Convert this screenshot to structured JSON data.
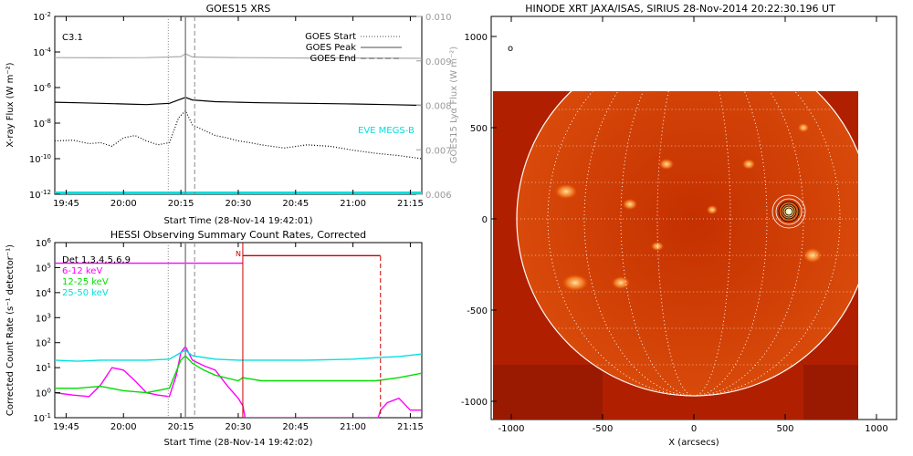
{
  "chart_data": [
    {
      "type": "line",
      "title": "GOES15 XRS",
      "xlabel": "Start Time (28-Nov-14 19:42:01)",
      "ylabel": "X-ray Flux (W m⁻²)",
      "ylabel_right": "GOES15 Lyα Flux (W m⁻²)",
      "annotation": "C3.1",
      "x_ticks": [
        "19:45",
        "20:00",
        "20:15",
        "20:30",
        "20:45",
        "21:00",
        "21:15"
      ],
      "x_tick_hours": [
        19.75,
        20.0,
        20.25,
        20.5,
        20.75,
        21.0,
        21.25
      ],
      "xlim": [
        19.7003,
        21.3
      ],
      "y_scale": "log",
      "ylim": [
        1e-12,
        0.01
      ],
      "y_ticks": [
        {
          "label": "10",
          "exp": "-12",
          "v": 1e-12
        },
        {
          "label": "10",
          "exp": "-10",
          "v": 1e-10
        },
        {
          "label": "10",
          "exp": "-8",
          "v": 1e-08
        },
        {
          "label": "10",
          "exp": "-6",
          "v": 1e-06
        },
        {
          "label": "10",
          "exp": "-4",
          "v": 0.0001
        },
        {
          "label": "10",
          "exp": "-2",
          "v": 0.01
        }
      ],
      "y_right_ticks": [
        "0.006",
        "0.007",
        "0.008",
        "0.009",
        "0.010"
      ],
      "y_right_range": [
        0.006,
        0.01
      ],
      "y_right_values": [
        0.006,
        0.007,
        0.008,
        0.009,
        0.01
      ],
      "overlay_text": "EVE MEGS-B",
      "legend": [
        {
          "label": "GOES Start",
          "style": "dotted"
        },
        {
          "label": "GOES Peak",
          "style": "solid"
        },
        {
          "label": "GOES End",
          "style": "dashed"
        }
      ],
      "markers": {
        "start": 20.195,
        "peak": 20.27,
        "end": 20.31
      },
      "series": [
        {
          "color": "#000000",
          "dash": "",
          "x": [
            19.7,
            19.8,
            19.9,
            20.0,
            20.1,
            20.2,
            20.24,
            20.27,
            20.3,
            20.4,
            20.5,
            20.6,
            20.8,
            21.0,
            21.15,
            21.3
          ],
          "y": [
            1.5e-07,
            1.4e-07,
            1.3e-07,
            1.2e-07,
            1.1e-07,
            1.3e-07,
            2e-07,
            2.8e-07,
            2e-07,
            1.6e-07,
            1.5e-07,
            1.4e-07,
            1.3e-07,
            1.2e-07,
            1.1e-07,
            1e-07
          ]
        },
        {
          "color": "#000000",
          "dash": "1,2",
          "x": [
            19.7,
            19.78,
            19.85,
            19.9,
            19.95,
            20.0,
            20.05,
            20.1,
            20.15,
            20.2,
            20.24,
            20.27,
            20.3,
            20.35,
            20.4,
            20.45,
            20.5,
            20.55,
            20.6,
            20.7,
            20.8,
            20.9,
            21.0,
            21.1,
            21.2,
            21.3
          ],
          "y": [
            1e-09,
            1.1e-09,
            7e-10,
            8e-10,
            5e-10,
            1.5e-09,
            2e-09,
            1e-09,
            6e-10,
            8e-10,
            2e-08,
            5e-08,
            8e-09,
            4e-09,
            2e-09,
            1.5e-09,
            1e-09,
            8e-10,
            6e-10,
            4e-10,
            6e-10,
            5e-10,
            3e-10,
            2e-10,
            1.5e-10,
            1e-10
          ]
        },
        {
          "color": "#aaaaaa",
          "dash": "",
          "x": [
            19.7,
            19.9,
            20.1,
            20.25,
            20.27,
            20.3,
            20.5,
            20.8,
            21.1,
            21.3
          ],
          "y": [
            4.8e-05,
            4.7e-05,
            4.8e-05,
            5.5e-05,
            8e-05,
            5.2e-05,
            4.8e-05,
            4.6e-05,
            4.6e-05,
            4.4e-05
          ]
        },
        {
          "color": "#00e0e0",
          "dash": "",
          "x": [
            19.7,
            21.3
          ],
          "y": [
            1.2e-12,
            1.2e-12
          ]
        }
      ]
    },
    {
      "type": "line",
      "title": "HESSI Observing Summary Count Rates, Corrected",
      "xlabel": "Start Time (28-Nov-14 19:42:02)",
      "ylabel": "Corrected Count Rate (s⁻¹ detector⁻¹)",
      "x_ticks": [
        "19:45",
        "20:00",
        "20:15",
        "20:30",
        "20:45",
        "21:00",
        "21:15"
      ],
      "x_tick_hours": [
        19.75,
        20.0,
        20.25,
        20.5,
        20.75,
        21.0,
        21.25
      ],
      "xlim": [
        19.7006,
        21.3
      ],
      "y_scale": "log",
      "ylim": [
        0.1,
        1000000.0
      ],
      "y_ticks": [
        {
          "label": "10",
          "exp": "-1",
          "v": 0.1
        },
        {
          "label": "10",
          "exp": "0",
          "v": 1
        },
        {
          "label": "10",
          "exp": "1",
          "v": 10
        },
        {
          "label": "10",
          "exp": "2",
          "v": 100
        },
        {
          "label": "10",
          "exp": "3",
          "v": 1000.0
        },
        {
          "label": "10",
          "exp": "4",
          "v": 10000.0
        },
        {
          "label": "10",
          "exp": "5",
          "v": 100000.0
        },
        {
          "label": "10",
          "exp": "6",
          "v": 1000000.0
        }
      ],
      "legend": [
        {
          "label": "Det 1,3,4,5,6,9",
          "color": "#000000"
        },
        {
          "label": "6-12 keV",
          "color": "#ff00ff"
        },
        {
          "label": "12-25 keV",
          "color": "#00dd00"
        },
        {
          "label": "25-50 keV",
          "color": "#00e0e0"
        }
      ],
      "night_label": "N",
      "markers": {
        "start": 20.195,
        "peak": 20.27,
        "end": 20.31,
        "night_start": 20.52,
        "night_end": 21.12
      },
      "series": [
        {
          "name": "6-12 keV",
          "color": "#ff00ff",
          "x": [
            19.7,
            19.78,
            19.85,
            19.9,
            19.95,
            20.0,
            20.05,
            20.1,
            20.15,
            20.2,
            20.23,
            20.25,
            20.27,
            20.3,
            20.35,
            20.4,
            20.45,
            20.5,
            20.52,
            20.53,
            21.11,
            21.12,
            21.15,
            21.2,
            21.25,
            21.3
          ],
          "y": [
            1,
            0.8,
            0.7,
            2,
            10,
            8,
            3,
            1,
            0.8,
            0.7,
            5,
            40,
            70,
            20,
            12,
            8,
            2,
            0.6,
            0.3,
            0.1,
            0.1,
            0.2,
            0.4,
            0.6,
            0.2,
            0.2
          ]
        },
        {
          "name": "12-25 keV",
          "color": "#00dd00",
          "x": [
            19.7,
            19.8,
            19.9,
            20.0,
            20.1,
            20.2,
            20.25,
            20.27,
            20.3,
            20.35,
            20.4,
            20.5,
            20.52,
            20.6,
            20.8,
            21.0,
            21.1,
            21.2,
            21.3
          ],
          "y": [
            1.5,
            1.5,
            1.8,
            1.2,
            1,
            1.5,
            20,
            30,
            15,
            8,
            5,
            3,
            4,
            3,
            3,
            3,
            3,
            4,
            6
          ]
        },
        {
          "name": "25-50 keV",
          "color": "#00e0e0",
          "x": [
            19.7,
            19.8,
            19.9,
            20.0,
            20.1,
            20.2,
            20.25,
            20.27,
            20.3,
            20.4,
            20.5,
            20.6,
            20.8,
            21.0,
            21.1,
            21.2,
            21.3
          ],
          "y": [
            20,
            18,
            20,
            20,
            20,
            22,
            40,
            50,
            30,
            22,
            20,
            20,
            20,
            22,
            25,
            28,
            35
          ]
        },
        {
          "name": "attenuator",
          "color": "#cc0000",
          "x": [
            20.52,
            21.12
          ],
          "y": [
            300000.0,
            300000.0
          ]
        },
        {
          "name": "saa",
          "color": "#ff00ff",
          "x": [
            19.7,
            20.52
          ],
          "y": [
            150000.0,
            150000.0
          ]
        }
      ]
    },
    {
      "type": "heatmap",
      "title": "HINODE XRT JAXA/ISAS, SIRIUS 28-Nov-2014 20:22:30.196 UT",
      "xlabel": "X (arcsecs)",
      "ylabel": "Y (arcsecs)",
      "x_ticks": [
        "-1000",
        "-500",
        "0",
        "500",
        "1000"
      ],
      "x_values": [
        -1000,
        -500,
        0,
        500,
        1000
      ],
      "y_ticks": [
        "-1000",
        "-500",
        "0",
        "500",
        "1000"
      ],
      "y_values": [
        -1000,
        -500,
        0,
        500,
        1000
      ],
      "xlim": [
        -1100,
        1100
      ],
      "ylim": [
        -1100,
        1100
      ],
      "disk_radius_arcsec": 970,
      "flare_location_arcsec": [
        520,
        40
      ],
      "colors": {
        "bg": "#b02000",
        "disk": "#cc3300",
        "bright": "#ffd27a",
        "limb": "#ffffff"
      }
    }
  ]
}
